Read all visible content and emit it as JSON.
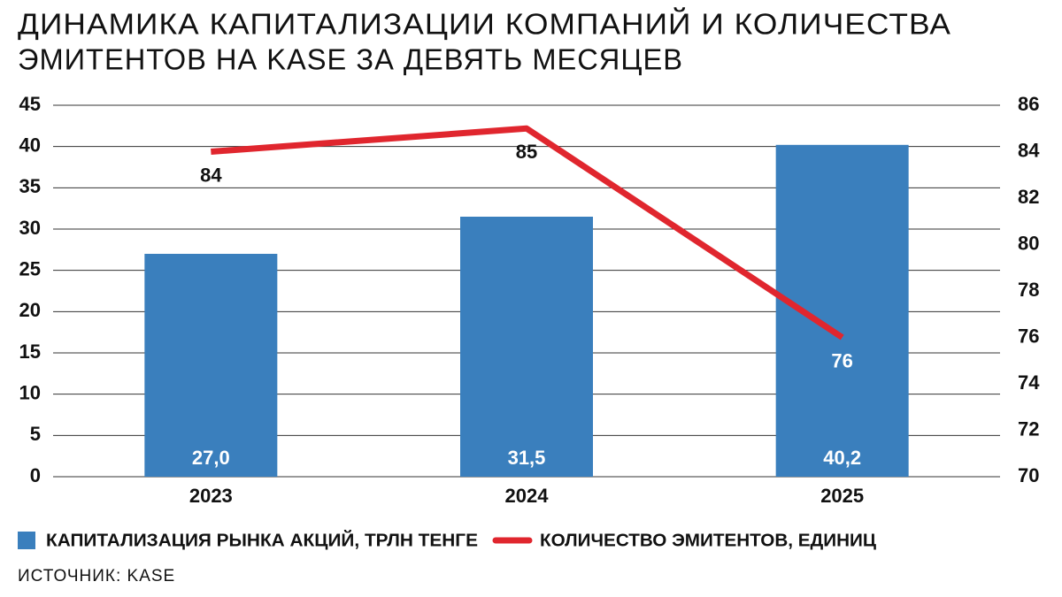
{
  "chart_data": {
    "type": "bar",
    "title": [
      "ДИНАМИКА КАПИТАЛИЗАЦИИ КОМПАНИЙ И КОЛИЧЕСТВА",
      "ЭМИТЕНТОВ НА KASE ЗА ДЕВЯТЬ МЕСЯЦЕВ"
    ],
    "categories": [
      "2023",
      "2024",
      "2025"
    ],
    "series": [
      {
        "name": "КАПИТАЛИЗАЦИЯ РЫНКА АКЦИЙ, ТРЛН ТЕНГЕ",
        "type": "bar",
        "color": "#3a7fbd",
        "values": [
          27.0,
          31.5,
          40.2
        ],
        "value_labels": [
          "27,0",
          "31,5",
          "40,2"
        ]
      },
      {
        "name": "КОЛИЧЕСТВО ЭМИТЕНТОВ, ЕДИНИЦ",
        "type": "line",
        "axis": "y2",
        "color": "#e0262e",
        "values": [
          84,
          85,
          76
        ]
      }
    ],
    "ylim": [
      0,
      45
    ],
    "yticks": [
      0,
      5,
      10,
      15,
      20,
      25,
      30,
      35,
      40,
      45
    ],
    "y2lim": [
      70,
      86
    ],
    "y2ticks": [
      70,
      72,
      74,
      76,
      78,
      80,
      82,
      84,
      86
    ],
    "grid": true,
    "source": "ИСТОЧНИК: KASE"
  }
}
